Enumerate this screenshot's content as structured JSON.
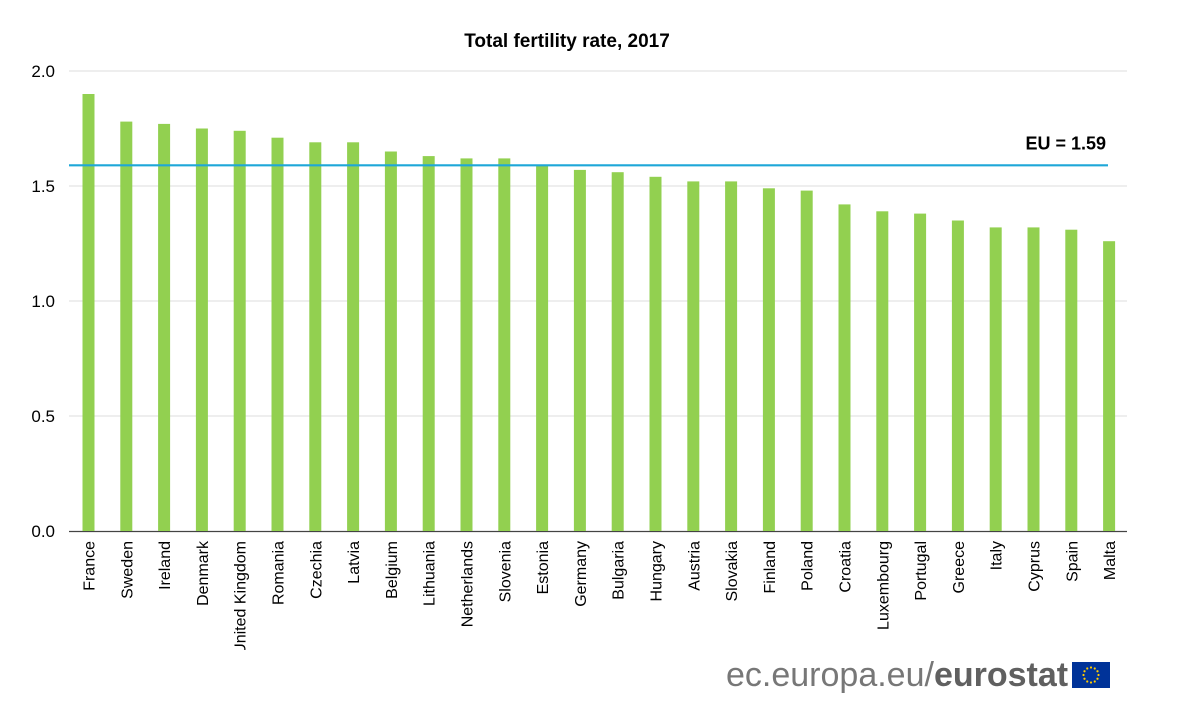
{
  "chart_data": {
    "type": "bar",
    "title": "Total fertility rate, 2017",
    "xlabel": "",
    "ylabel": "",
    "ylim": [
      0,
      2.0
    ],
    "yticks": [
      "0.0",
      "0.5",
      "1.0",
      "1.5",
      "2.0"
    ],
    "grid": true,
    "categories": [
      "France",
      "Sweden",
      "Ireland",
      "Denmark",
      "United Kingdom",
      "Romania",
      "Czechia",
      "Latvia",
      "Belgium",
      "Lithuania",
      "Netherlands",
      "Slovenia",
      "Estonia",
      "Germany",
      "Bulgaria",
      "Hungary",
      "Austria",
      "Slovakia",
      "Finland",
      "Poland",
      "Croatia",
      "Luxembourg",
      "Portugal",
      "Greece",
      "Italy",
      "Cyprus",
      "Spain",
      "Malta"
    ],
    "values": [
      1.9,
      1.78,
      1.77,
      1.75,
      1.74,
      1.71,
      1.69,
      1.69,
      1.65,
      1.63,
      1.62,
      1.62,
      1.59,
      1.57,
      1.56,
      1.54,
      1.52,
      1.52,
      1.49,
      1.48,
      1.42,
      1.39,
      1.38,
      1.35,
      1.32,
      1.32,
      1.31,
      1.26
    ],
    "reference_line": {
      "value": 1.59,
      "label": "EU = 1.59"
    },
    "colors": {
      "bar": "#92d050",
      "reference": "#1ea7d8",
      "grid": "#dddddd",
      "axis": "#444444",
      "text": "#000000"
    }
  },
  "footer": {
    "domain": "ec.europa.eu/",
    "brand": "eurostat"
  },
  "colors": {
    "flag_blue": "#003399",
    "flag_star": "#ffcc00"
  }
}
